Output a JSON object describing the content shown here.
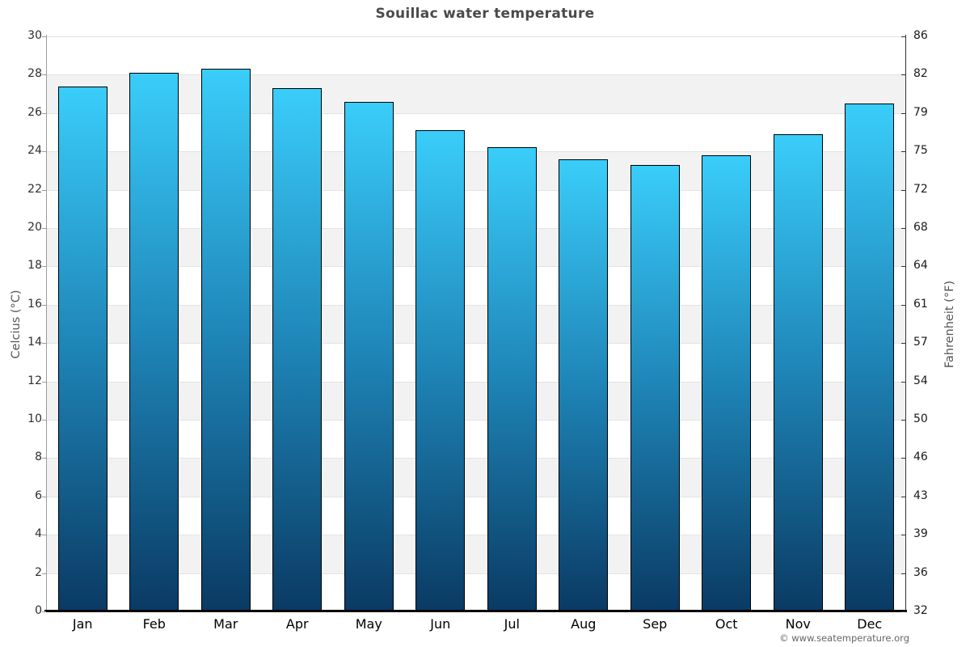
{
  "title": "Souillac water temperature",
  "watermark": "© www.seatemperature.org",
  "axes": {
    "left_label": "Celcius (°C)",
    "right_label": "Fahrenheit (°F)"
  },
  "colors": {
    "bar_gradient_top": "#3acdfa",
    "bar_gradient_mid": "#1e84b6",
    "bar_gradient_bottom": "#0a3a63",
    "bar_border": "#000000",
    "band_gray": "#f2f2f2",
    "gridline": "#e3e3e3",
    "left_tick": "#9a9a9a",
    "right_tick": "#333333",
    "title_text": "#4a4a4a"
  },
  "chart_data": {
    "type": "bar",
    "title": "Souillac water temperature",
    "categories": [
      "Jan",
      "Feb",
      "Mar",
      "Apr",
      "May",
      "Jun",
      "Jul",
      "Aug",
      "Sep",
      "Oct",
      "Nov",
      "Dec"
    ],
    "values": [
      27.4,
      28.1,
      28.3,
      27.3,
      26.6,
      25.1,
      24.2,
      23.6,
      23.3,
      23.8,
      24.9,
      26.5
    ],
    "xlabel": "",
    "ylabel_left": "Celcius (°C)",
    "ylabel_right": "Fahrenheit (°F)",
    "ylim": [
      0,
      30
    ],
    "yticks_left": [
      30,
      28,
      26,
      24,
      22,
      20,
      18,
      16,
      14,
      12,
      10,
      8,
      6,
      4,
      2,
      0
    ],
    "yticks_right_labels": [
      "86",
      "82",
      "79",
      "75",
      "72",
      "68",
      "64",
      "61",
      "57",
      "54",
      "50",
      "46",
      "43",
      "39",
      "36",
      "32"
    ],
    "grid": "horizontal alternating bands every 2°C, white top band",
    "legend": "none",
    "bar_outline": true
  }
}
